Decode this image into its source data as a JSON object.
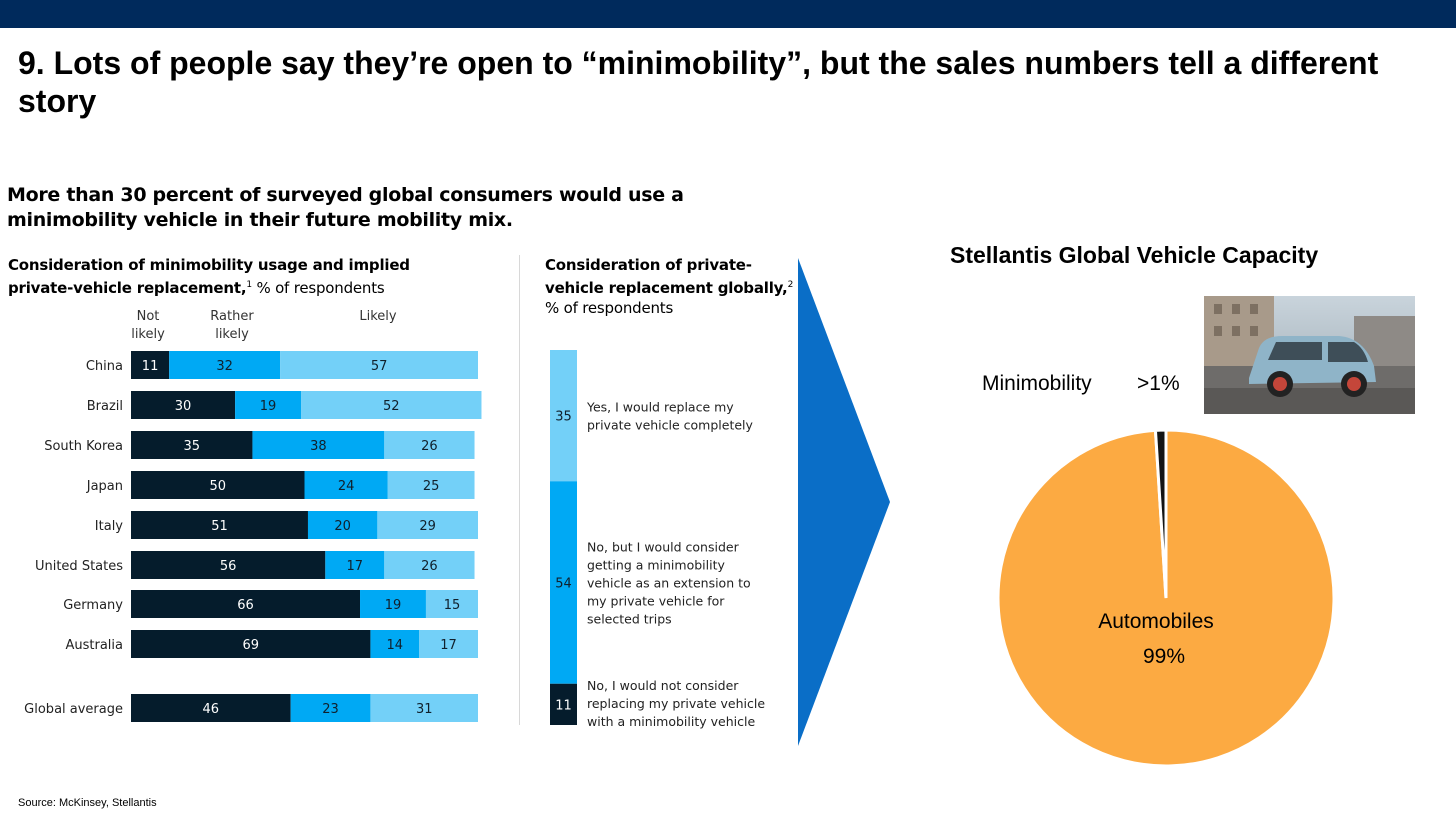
{
  "slide": {
    "title": "9. Lots of people say they’re open to “minimobility”, but the sales numbers tell a different story",
    "headline": "More than 30 percent of surveyed global consumers would use a minimobility vehicle in their future mobility mix.",
    "source": "Source: McKinsey, Stellantis"
  },
  "left_panel": {
    "title_bold": "Consideration of minimobility usage and implied private-vehicle replacement,",
    "title_sup": "1",
    "title_rest": " % of respondents"
  },
  "mid_panel": {
    "title_bold": "Consideration of private-vehicle replacement globally,",
    "title_sup": "2",
    "title_rest": "% of respondents"
  },
  "pie_panel": {
    "title": "Stellantis Global Vehicle Capacity"
  },
  "colors": {
    "dark_navy": "#051c2c",
    "mid_blue": "#00a9f4",
    "light_blue": "#73d0f8",
    "arrow_blue": "#0a6ec7",
    "pie_orange": "#fcaa42",
    "pie_dark": "#141414",
    "topbar": "#002a5c"
  },
  "chart_data": [
    {
      "type": "bar",
      "orientation": "horizontal-stacked",
      "series_header_labels": [
        [
          "Not",
          "likely"
        ],
        [
          "Rather",
          "likely"
        ],
        [
          "Likely"
        ]
      ],
      "categories": [
        "China",
        "Brazil",
        "South Korea",
        "Japan",
        "Italy",
        "United States",
        "Germany",
        "Australia",
        "Global average"
      ],
      "series": [
        {
          "values": [
            11,
            30,
            35,
            50,
            51,
            56,
            66,
            69,
            46
          ]
        },
        {
          "values": [
            32,
            19,
            38,
            24,
            20,
            17,
            19,
            14,
            23
          ]
        },
        {
          "values": [
            57,
            52,
            26,
            25,
            29,
            26,
            15,
            17,
            31
          ]
        }
      ],
      "xlim": [
        0,
        100
      ],
      "legend": "top"
    },
    {
      "type": "bar",
      "orientation": "vertical-stacked",
      "segments": [
        {
          "value": 35,
          "label": "Yes, I would replace my private vehicle completely"
        },
        {
          "value": 54,
          "label": "No, but I would consider getting a minimobility vehicle as an extension to my private vehicle for selected trips"
        },
        {
          "value": 11,
          "label": "No, I would not consider replacing my private vehicle with a minimobility vehicle"
        }
      ]
    },
    {
      "type": "pie",
      "slices": [
        {
          "label": "Automobiles",
          "value_label": "99%",
          "value": 99
        },
        {
          "label": "Minimobility",
          "value_label": ">1%",
          "value": 1
        }
      ]
    }
  ]
}
